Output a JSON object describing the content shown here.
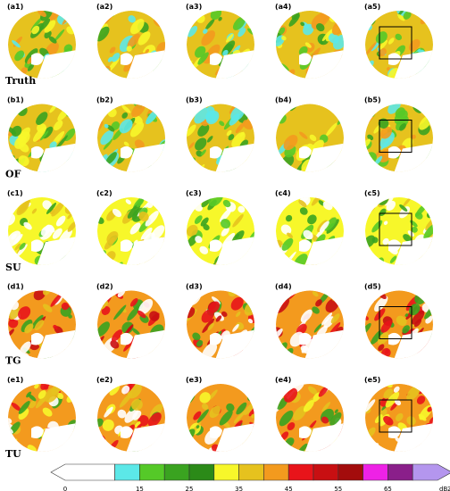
{
  "figure": {
    "rows": [
      {
        "label": "Truth",
        "panels": [
          "(a1)",
          "(a2)",
          "(a3)",
          "(a4)",
          "(a5)"
        ]
      },
      {
        "label": "OF",
        "panels": [
          "(b1)",
          "(b2)",
          "(b3)",
          "(b4)",
          "(b5)"
        ]
      },
      {
        "label": "SU",
        "panels": [
          "(c1)",
          "(c2)",
          "(c3)",
          "(c4)",
          "(c5)"
        ]
      },
      {
        "label": "TG",
        "panels": [
          "(d1)",
          "(d2)",
          "(d3)",
          "(d4)",
          "(d5)"
        ]
      },
      {
        "label": "TU",
        "panels": [
          "(e1)",
          "(e2)",
          "(e3)",
          "(e4)",
          "(e5)"
        ]
      }
    ]
  },
  "colorbar": {
    "ticks": [
      0,
      15,
      25,
      35,
      45,
      55,
      65
    ],
    "unit": "dBZ",
    "colors": [
      "#ffffff",
      "#5ce8e8",
      "#55c928",
      "#3aa320",
      "#2b8a18",
      "#f7f72a",
      "#e6c21e",
      "#f39a1e",
      "#e8141a",
      "#c80f12",
      "#a30c0c",
      "#ee22e6",
      "#8a1f8a",
      "#b496ee"
    ]
  }
}
